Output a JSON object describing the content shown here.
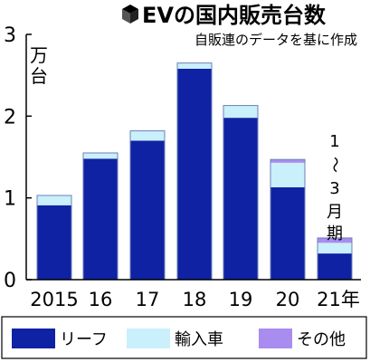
{
  "colors": {
    "leaf": "#0f22a4",
    "import": "#c9f0fb",
    "other": "#a98cef",
    "outline": "#6e7fb8",
    "axis": "#000000"
  },
  "chart_data": {
    "type": "bar",
    "stacked": true,
    "title": "EVの国内販売台数",
    "subtitle": "自販連のデータを基に作成",
    "title_icon": "cube-icon",
    "y_unit": "万台",
    "ylim": [
      0,
      3
    ],
    "yticks": [
      0,
      1,
      2,
      3
    ],
    "grid": false,
    "legend_position": "bottom",
    "categories": [
      "2015",
      "16",
      "17",
      "18",
      "19",
      "20",
      "21年"
    ],
    "category_note": "1〜3月期",
    "series": [
      {
        "name": "リーフ",
        "color_key": "leaf",
        "values": [
          0.91,
          1.48,
          1.7,
          2.58,
          1.98,
          1.13,
          0.32
        ]
      },
      {
        "name": "輸入車",
        "color_key": "import",
        "values": [
          0.12,
          0.07,
          0.12,
          0.07,
          0.15,
          0.3,
          0.13
        ]
      },
      {
        "name": "その他",
        "color_key": "other",
        "values": [
          0.0,
          0.0,
          0.0,
          0.0,
          0.0,
          0.04,
          0.06
        ]
      }
    ]
  }
}
